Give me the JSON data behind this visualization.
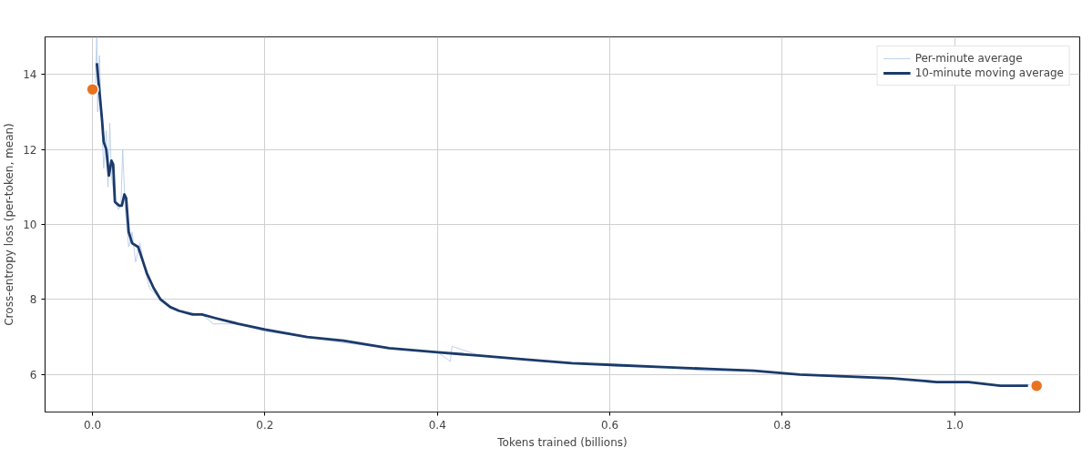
{
  "chart_data": {
    "type": "line",
    "xlabel": "Tokens trained (billions)",
    "ylabel": "Cross-entropy loss (per-token, mean)",
    "xlim": [
      -0.055,
      1.145
    ],
    "ylim": [
      5,
      15
    ],
    "xticks": [
      {
        "value": 0,
        "label": "0.0"
      },
      0.2,
      0.4,
      0.6,
      0.8,
      {
        "value": 1,
        "label": "1.0"
      }
    ],
    "yticks": [
      6,
      8,
      10,
      12,
      14
    ],
    "grid": true,
    "legend": "top right",
    "series": [
      {
        "name": "Per-minute average",
        "color": "#aec7e8",
        "x": [
          0.003,
          0.005,
          0.006,
          0.008,
          0.011,
          0.013,
          0.016,
          0.018,
          0.02,
          0.022,
          0.026,
          0.03,
          0.033,
          0.035,
          0.038,
          0.042,
          0.046,
          0.05,
          0.055,
          0.06,
          0.066,
          0.075,
          0.09,
          0.1,
          0.127,
          0.14,
          0.17,
          0.2,
          0.25,
          0.29,
          0.345,
          0.4,
          0.415,
          0.417,
          0.45,
          0.5,
          0.56,
          0.61,
          0.66,
          0.71,
          0.77,
          0.82,
          0.87,
          0.93,
          0.98,
          1.02,
          1.05,
          1.09
        ],
        "values": [
          13.6,
          15.0,
          13.0,
          14.5,
          12.5,
          11.5,
          12.5,
          11.0,
          12.7,
          11.3,
          10.6,
          10.4,
          10.5,
          12.0,
          10.4,
          9.4,
          9.8,
          9.0,
          9.5,
          8.9,
          8.3,
          8.1,
          7.8,
          7.7,
          7.6,
          7.35,
          7.35,
          7.15,
          7.0,
          6.85,
          6.7,
          6.6,
          6.35,
          6.75,
          6.5,
          6.4,
          6.3,
          6.22,
          6.2,
          6.1,
          6.1,
          6.0,
          5.93,
          5.87,
          null,
          5.8,
          5.7,
          5.73
        ]
      },
      {
        "name": "10-minute moving average",
        "color": "#1b3a6b",
        "x": [
          0.005,
          0.007,
          0.011,
          0.013,
          0.016,
          0.019,
          0.022,
          0.024,
          0.026,
          0.031,
          0.034,
          0.037,
          0.039,
          0.042,
          0.046,
          0.053,
          0.058,
          0.063,
          0.071,
          0.079,
          0.09,
          0.1,
          0.116,
          0.127,
          0.143,
          0.169,
          0.2,
          0.249,
          0.291,
          0.344,
          0.397,
          0.45,
          0.503,
          0.556,
          0.608,
          0.661,
          0.714,
          0.767,
          0.82,
          0.873,
          0.926,
          0.979,
          1.016,
          1.053,
          1.085
        ],
        "values": [
          14.3,
          13.8,
          12.8,
          12.2,
          12.0,
          11.3,
          11.7,
          11.6,
          10.6,
          10.5,
          10.5,
          10.8,
          10.7,
          9.8,
          9.5,
          9.4,
          9.05,
          8.7,
          8.3,
          8.0,
          7.8,
          7.7,
          7.6,
          7.6,
          7.5,
          7.35,
          7.2,
          7.0,
          6.9,
          6.7,
          6.6,
          6.5,
          6.4,
          6.3,
          6.25,
          6.2,
          6.15,
          6.1,
          6.0,
          5.95,
          5.9,
          5.8,
          5.8,
          5.7,
          5.7
        ]
      },
      {
        "type": "scatter",
        "marker": "circle",
        "color": "#e8731f",
        "x": [
          0,
          1.095
        ],
        "values": [
          13.6,
          5.7
        ]
      }
    ]
  }
}
